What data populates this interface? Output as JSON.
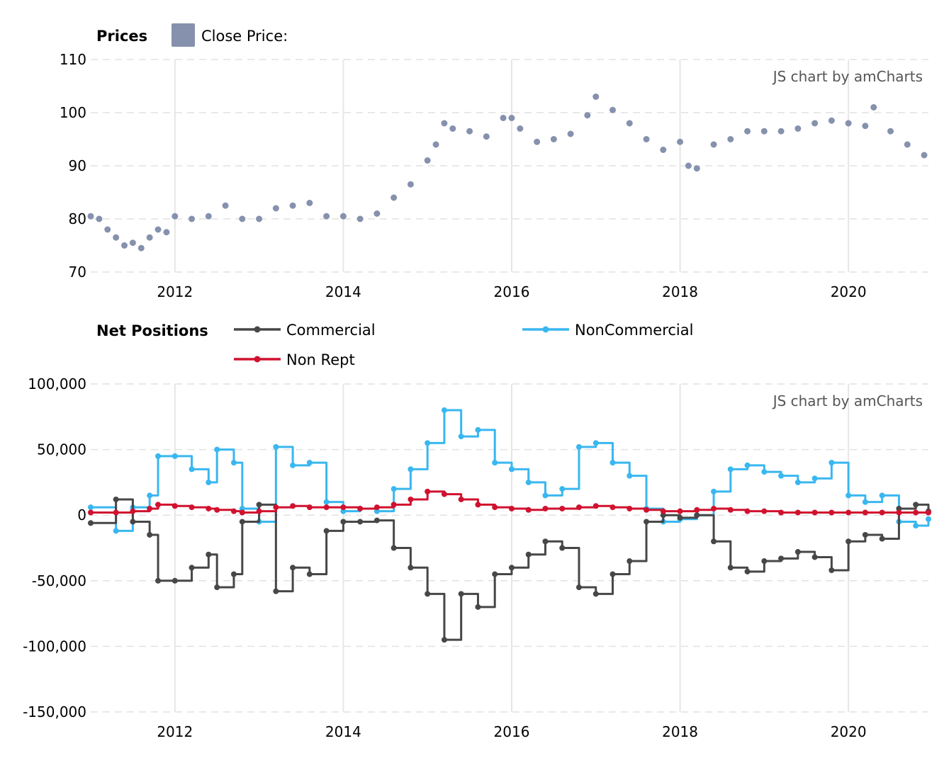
{
  "chart_data": [
    {
      "type": "scatter",
      "title": "Prices",
      "legend": [
        {
          "name": "Close Price:",
          "color": "#8591ad"
        }
      ],
      "credit": "JS chart by amCharts",
      "x_axis": {
        "min": 2011.0,
        "max": 2020.95,
        "ticks": [
          2012,
          2014,
          2016,
          2018,
          2020
        ]
      },
      "y_axis": {
        "min": 70,
        "max": 110,
        "ticks": [
          "110",
          "100",
          "90",
          "80",
          "70"
        ],
        "tick_values": [
          110,
          100,
          90,
          80,
          70
        ]
      },
      "grid": true,
      "series": [
        {
          "name": "Close Price:",
          "color": "#8591ad",
          "x": [
            2011.0,
            2011.1,
            2011.2,
            2011.3,
            2011.4,
            2011.5,
            2011.6,
            2011.7,
            2011.8,
            2011.9,
            2012.0,
            2012.2,
            2012.4,
            2012.6,
            2012.8,
            2013.0,
            2013.2,
            2013.4,
            2013.6,
            2013.8,
            2014.0,
            2014.2,
            2014.4,
            2014.6,
            2014.8,
            2015.0,
            2015.1,
            2015.2,
            2015.3,
            2015.5,
            2015.7,
            2015.9,
            2016.0,
            2016.1,
            2016.3,
            2016.5,
            2016.7,
            2016.9,
            2017.0,
            2017.2,
            2017.4,
            2017.6,
            2017.8,
            2018.0,
            2018.1,
            2018.2,
            2018.4,
            2018.6,
            2018.8,
            2019.0,
            2019.2,
            2019.4,
            2019.6,
            2019.8,
            2020.0,
            2020.2,
            2020.3,
            2020.5,
            2020.7,
            2020.9
          ],
          "y": [
            80.5,
            80.0,
            78.0,
            76.5,
            75.0,
            75.5,
            74.5,
            76.5,
            78.0,
            77.5,
            80.5,
            80.0,
            80.5,
            82.5,
            80.0,
            80.0,
            82.0,
            82.5,
            83.0,
            80.5,
            80.5,
            80.0,
            81.0,
            84.0,
            86.5,
            91.0,
            94.0,
            98.0,
            97.0,
            96.5,
            95.5,
            99.0,
            99.0,
            97.0,
            94.5,
            95.0,
            96.0,
            99.5,
            103.0,
            100.5,
            98.0,
            95.0,
            93.0,
            94.5,
            90.0,
            89.5,
            94.0,
            95.0,
            96.5,
            96.5,
            96.5,
            97.0,
            98.0,
            98.5,
            98.0,
            97.5,
            101.0,
            96.5,
            94.0,
            92.0
          ]
        }
      ]
    },
    {
      "type": "line",
      "title": "Net Positions",
      "legend": [
        {
          "name": "Commercial",
          "color": "#474747"
        },
        {
          "name": "NonCommercial",
          "color": "#39b7f0"
        },
        {
          "name": "Non Rept",
          "color": "#d0122f"
        }
      ],
      "credit": "JS chart by amCharts",
      "x_axis": {
        "min": 2011.0,
        "max": 2020.95,
        "ticks": [
          2012,
          2014,
          2016,
          2018,
          2020
        ]
      },
      "y_axis": {
        "min": -150000,
        "max": 100000,
        "ticks": [
          "100,000",
          "50,000",
          "0",
          "-50,000",
          "-100,000",
          "-150,000"
        ],
        "tick_values": [
          100000,
          50000,
          0,
          -50000,
          -100000,
          -150000
        ]
      },
      "grid": true,
      "x": [
        2011.0,
        2011.3,
        2011.5,
        2011.7,
        2011.8,
        2012.0,
        2012.2,
        2012.4,
        2012.5,
        2012.7,
        2012.8,
        2013.0,
        2013.2,
        2013.4,
        2013.6,
        2013.8,
        2014.0,
        2014.2,
        2014.4,
        2014.6,
        2014.8,
        2015.0,
        2015.2,
        2015.4,
        2015.6,
        2015.8,
        2016.0,
        2016.2,
        2016.4,
        2016.6,
        2016.8,
        2017.0,
        2017.2,
        2017.4,
        2017.6,
        2017.8,
        2018.0,
        2018.2,
        2018.4,
        2018.6,
        2018.8,
        2019.0,
        2019.2,
        2019.4,
        2019.6,
        2019.8,
        2020.0,
        2020.2,
        2020.4,
        2020.6,
        2020.8,
        2020.95
      ],
      "series": [
        {
          "name": "Commercial",
          "color": "#474747",
          "values": [
            -6000,
            12000,
            -5000,
            -15000,
            -50000,
            -50000,
            -40000,
            -30000,
            -55000,
            -45000,
            -5000,
            8000,
            -58000,
            -40000,
            -45000,
            -12000,
            -5000,
            -5000,
            -4000,
            -25000,
            -40000,
            -60000,
            -95000,
            -60000,
            -70000,
            -45000,
            -40000,
            -30000,
            -20000,
            -25000,
            -55000,
            -60000,
            -45000,
            -35000,
            -5000,
            0,
            -2000,
            0,
            -20000,
            -40000,
            -43000,
            -35000,
            -33000,
            -28000,
            -32000,
            -42000,
            -20000,
            -15000,
            -18000,
            5000,
            8000,
            3000
          ]
        },
        {
          "name": "NonCommercial",
          "color": "#39b7f0",
          "values": [
            6000,
            -12000,
            6000,
            15000,
            45000,
            45000,
            35000,
            25000,
            50000,
            40000,
            5000,
            -5000,
            52000,
            38000,
            40000,
            10000,
            3000,
            5000,
            3000,
            20000,
            35000,
            55000,
            80000,
            60000,
            65000,
            40000,
            35000,
            25000,
            15000,
            20000,
            52000,
            55000,
            40000,
            30000,
            5000,
            -5000,
            -3000,
            0,
            18000,
            35000,
            38000,
            33000,
            30000,
            25000,
            28000,
            40000,
            15000,
            10000,
            15000,
            -5000,
            -8000,
            -3000
          ]
        },
        {
          "name": "Non Rept",
          "color": "#d0122f",
          "values": [
            2000,
            2000,
            3000,
            5000,
            8000,
            7000,
            6000,
            5000,
            4000,
            3000,
            2000,
            3000,
            6000,
            7000,
            6000,
            6000,
            6000,
            5000,
            6000,
            8000,
            12000,
            18000,
            16000,
            12000,
            8000,
            6000,
            5000,
            4000,
            5000,
            5000,
            6000,
            7000,
            6000,
            5000,
            4000,
            3000,
            3000,
            4000,
            5000,
            4000,
            3000,
            3000,
            2000,
            2000,
            2000,
            2000,
            2000,
            2000,
            2000,
            2000,
            2000,
            2000
          ]
        }
      ]
    }
  ]
}
